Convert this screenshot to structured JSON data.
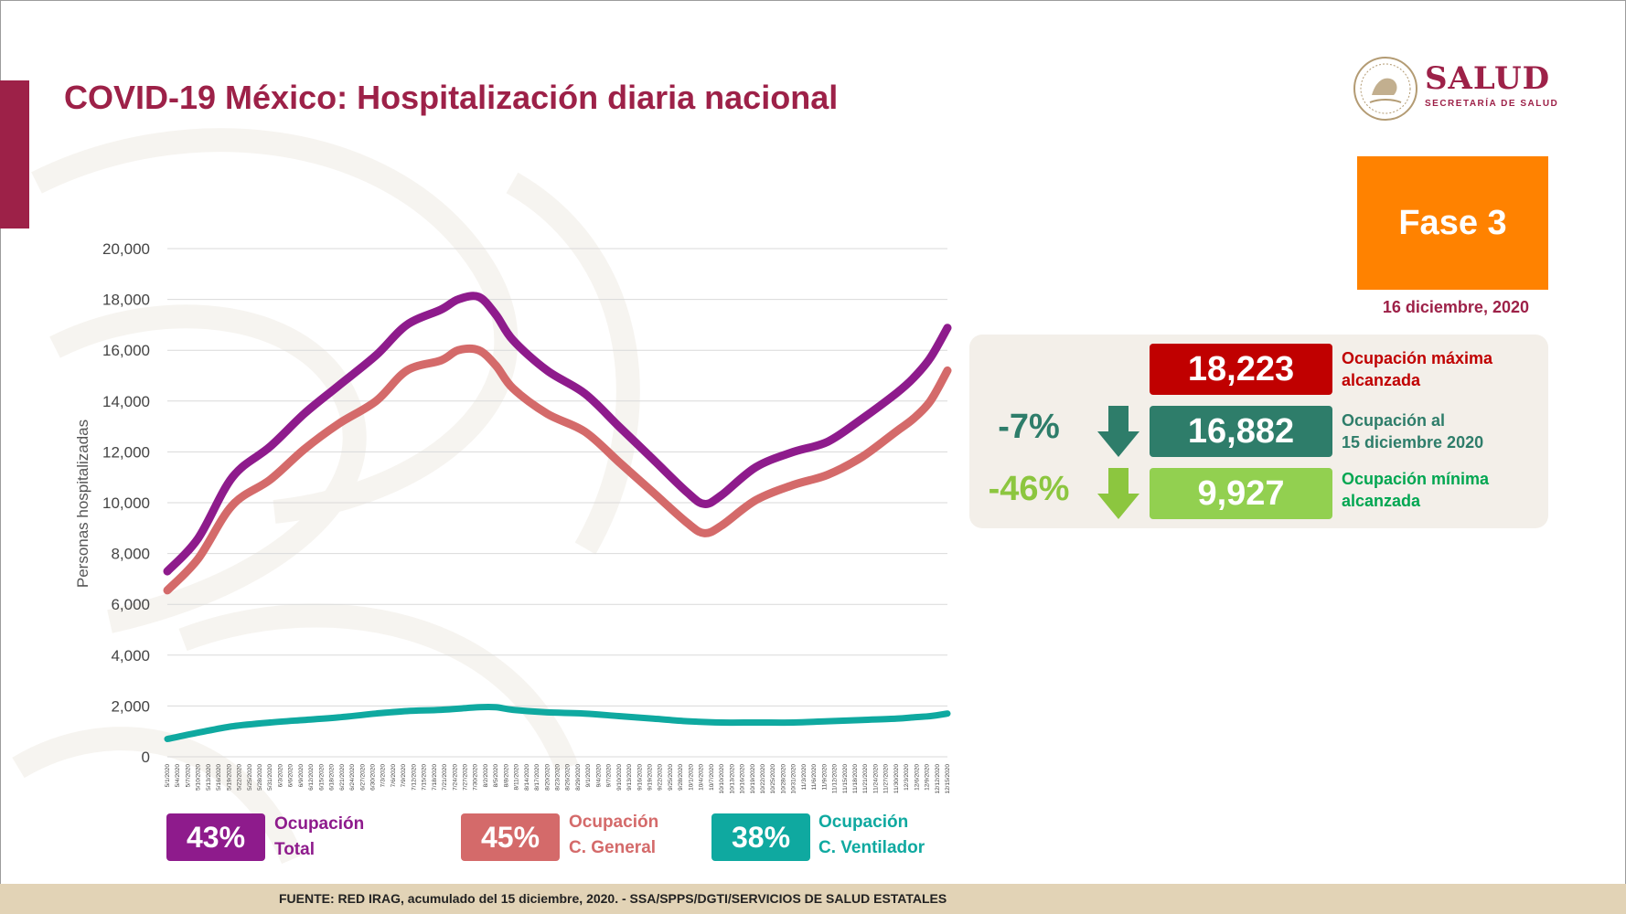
{
  "header": {
    "title": "COVID-19 México: Hospitalización diaria nacional"
  },
  "logo": {
    "text": "SALUD",
    "subtitle": "SECRETARÍA DE SALUD"
  },
  "phase": {
    "label": "Fase 3",
    "date": "16 diciembre, 2020"
  },
  "stats": [
    {
      "value": "18,223",
      "label_line1": "Ocupación máxima",
      "label_line2": "alcanzada",
      "color": "#c00000",
      "label_color": "#c00000",
      "pct": ""
    },
    {
      "value": "16,882",
      "label_line1": "Ocupación al",
      "label_line2": "15 diciembre 2020",
      "color": "#2e7d6a",
      "label_color": "#2e7d6a",
      "pct": "-7%",
      "arrow_color": "#2e7d6a"
    },
    {
      "value": "9,927",
      "label_line1": "Ocupación mínima",
      "label_line2": "alcanzada",
      "color": "#92d050",
      "label_color": "#00a651",
      "pct": "-46%",
      "arrow_color": "#8cc63f"
    }
  ],
  "legend": [
    {
      "pct": "43%",
      "line1": "Ocupación",
      "line2": "Total",
      "color": "#8e1b8c",
      "text_color": "#8e1b8c"
    },
    {
      "pct": "45%",
      "line1": "Ocupación",
      "line2": "C. General",
      "color": "#d46a6a",
      "text_color": "#d46a6a"
    },
    {
      "pct": "38%",
      "line1": "Ocupación",
      "line2": "C. Ventilador",
      "color": "#0fa9a0",
      "text_color": "#0fa9a0"
    }
  ],
  "footer": {
    "text": "FUENTE: RED IRAG, acumulado del 15 diciembre, 2020. -  SSA/SPPS/DGTI/SERVICIOS DE SALUD ESTATALES"
  },
  "chart_data": {
    "type": "line",
    "title": "",
    "xlabel": "",
    "ylabel": "Personas hospitalizadas",
    "ylim": [
      0,
      20000
    ],
    "yticks": [
      "0",
      "2,000",
      "4,000",
      "6,000",
      "8,000",
      "10,000",
      "12,000",
      "14,000",
      "16,000",
      "18,000",
      "20,000"
    ],
    "grid": true,
    "x_start": "5/1/2020",
    "x_end": "12/15/2020",
    "xticks": [
      "5/1/2020",
      "5/4/2020",
      "5/7/2020",
      "5/10/2020",
      "5/13/2020",
      "5/16/2020",
      "5/19/2020",
      "5/22/2020",
      "5/25/2020",
      "5/28/2020",
      "5/31/2020",
      "6/3/2020",
      "6/6/2020",
      "6/9/2020",
      "6/12/2020",
      "6/15/2020",
      "6/18/2020",
      "6/21/2020",
      "6/24/2020",
      "6/27/2020",
      "6/30/2020",
      "7/3/2020",
      "7/6/2020",
      "7/9/2020",
      "7/12/2020",
      "7/15/2020",
      "7/18/2020",
      "7/21/2020",
      "7/24/2020",
      "7/27/2020",
      "7/30/2020",
      "8/2/2020",
      "8/5/2020",
      "8/8/2020",
      "8/11/2020",
      "8/14/2020",
      "8/17/2020",
      "8/20/2020",
      "8/23/2020",
      "8/26/2020",
      "8/29/2020",
      "9/1/2020",
      "9/4/2020",
      "9/7/2020",
      "9/10/2020",
      "9/13/2020",
      "9/16/2020",
      "9/19/2020",
      "9/22/2020",
      "9/25/2020",
      "9/28/2020",
      "10/1/2020",
      "10/4/2020",
      "10/7/2020",
      "10/10/2020",
      "10/13/2020",
      "10/16/2020",
      "10/19/2020",
      "10/22/2020",
      "10/25/2020",
      "10/28/2020",
      "10/31/2020",
      "11/3/2020",
      "11/6/2020",
      "11/9/2020",
      "11/12/2020",
      "11/15/2020",
      "11/18/2020",
      "11/21/2020",
      "11/24/2020",
      "11/27/2020",
      "11/30/2020",
      "12/3/2020",
      "12/6/2020",
      "12/9/2020",
      "12/12/2020",
      "12/15/2020"
    ],
    "series": [
      {
        "name": "Ocupación Total",
        "color": "#8e1b8c",
        "points": [
          [
            "5/1/2020",
            7300
          ],
          [
            "5/10/2020",
            8600
          ],
          [
            "5/20/2020",
            11000
          ],
          [
            "5/31/2020",
            12200
          ],
          [
            "6/10/2020",
            13500
          ],
          [
            "6/20/2020",
            14600
          ],
          [
            "7/1/2020",
            15800
          ],
          [
            "7/10/2020",
            17000
          ],
          [
            "7/20/2020",
            17600
          ],
          [
            "7/25/2020",
            18000
          ],
          [
            "7/31/2020",
            18100
          ],
          [
            "8/5/2020",
            17400
          ],
          [
            "8/10/2020",
            16400
          ],
          [
            "8/20/2020",
            15200
          ],
          [
            "8/31/2020",
            14300
          ],
          [
            "9/10/2020",
            13000
          ],
          [
            "9/20/2020",
            11700
          ],
          [
            "9/30/2020",
            10400
          ],
          [
            "10/5/2020",
            9950
          ],
          [
            "10/10/2020",
            10300
          ],
          [
            "10/20/2020",
            11400
          ],
          [
            "10/31/2020",
            12000
          ],
          [
            "11/10/2020",
            12400
          ],
          [
            "11/20/2020",
            13300
          ],
          [
            "11/30/2020",
            14300
          ],
          [
            "12/5/2020",
            14900
          ],
          [
            "12/10/2020",
            15700
          ],
          [
            "12/15/2020",
            16882
          ]
        ]
      },
      {
        "name": "Ocupación C. General",
        "color": "#d46a6a",
        "points": [
          [
            "5/1/2020",
            6550
          ],
          [
            "5/10/2020",
            7800
          ],
          [
            "5/20/2020",
            9900
          ],
          [
            "5/31/2020",
            10900
          ],
          [
            "6/10/2020",
            12100
          ],
          [
            "6/20/2020",
            13100
          ],
          [
            "7/1/2020",
            14000
          ],
          [
            "7/10/2020",
            15200
          ],
          [
            "7/20/2020",
            15600
          ],
          [
            "7/25/2020",
            16000
          ],
          [
            "7/31/2020",
            16000
          ],
          [
            "8/5/2020",
            15400
          ],
          [
            "8/10/2020",
            14500
          ],
          [
            "8/20/2020",
            13500
          ],
          [
            "8/31/2020",
            12800
          ],
          [
            "9/10/2020",
            11600
          ],
          [
            "9/20/2020",
            10400
          ],
          [
            "9/30/2020",
            9200
          ],
          [
            "10/5/2020",
            8800
          ],
          [
            "10/10/2020",
            9100
          ],
          [
            "10/20/2020",
            10100
          ],
          [
            "10/31/2020",
            10700
          ],
          [
            "11/10/2020",
            11100
          ],
          [
            "11/20/2020",
            11800
          ],
          [
            "11/30/2020",
            12800
          ],
          [
            "12/5/2020",
            13300
          ],
          [
            "12/10/2020",
            14000
          ],
          [
            "12/15/2020",
            15200
          ]
        ]
      },
      {
        "name": "Ocupación C. Ventilador",
        "color": "#0fa9a0",
        "points": [
          [
            "5/1/2020",
            700
          ],
          [
            "5/10/2020",
            950
          ],
          [
            "5/20/2020",
            1200
          ],
          [
            "5/31/2020",
            1350
          ],
          [
            "6/10/2020",
            1450
          ],
          [
            "6/20/2020",
            1550
          ],
          [
            "7/1/2020",
            1700
          ],
          [
            "7/10/2020",
            1800
          ],
          [
            "7/20/2020",
            1850
          ],
          [
            "7/31/2020",
            1950
          ],
          [
            "8/5/2020",
            1950
          ],
          [
            "8/10/2020",
            1850
          ],
          [
            "8/20/2020",
            1750
          ],
          [
            "8/31/2020",
            1700
          ],
          [
            "9/10/2020",
            1600
          ],
          [
            "9/20/2020",
            1500
          ],
          [
            "9/30/2020",
            1400
          ],
          [
            "10/10/2020",
            1350
          ],
          [
            "10/20/2020",
            1350
          ],
          [
            "10/31/2020",
            1350
          ],
          [
            "11/10/2020",
            1400
          ],
          [
            "11/20/2020",
            1450
          ],
          [
            "11/30/2020",
            1500
          ],
          [
            "12/5/2020",
            1550
          ],
          [
            "12/10/2020",
            1600
          ],
          [
            "12/15/2020",
            1700
          ]
        ]
      }
    ]
  }
}
